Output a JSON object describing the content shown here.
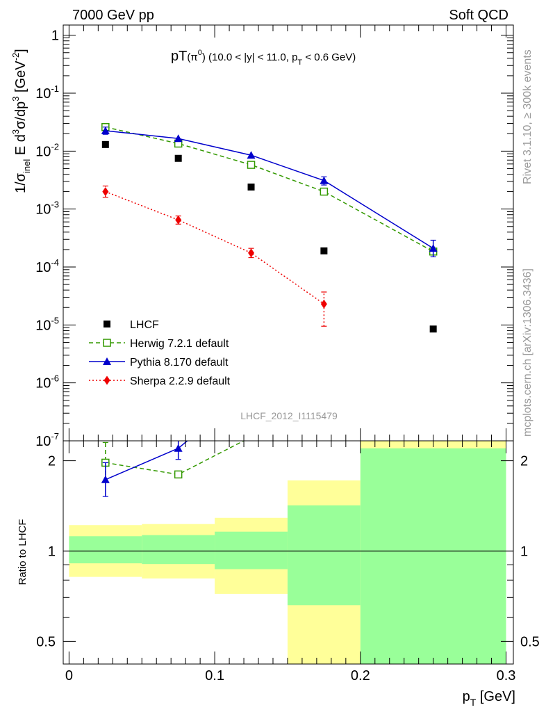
{
  "header": {
    "left": "7000 GeV pp",
    "right": "Soft QCD"
  },
  "side_text": {
    "rivet": "Rivet 3.1.10, ≥ 300k events",
    "mcplots": "mcplots.cern.ch [arXiv:1306.3436]"
  },
  "chart_data": [
    {
      "type": "line",
      "title": "pT(π⁰) (10.0 < |y| < 11.0, p_T < 0.6 GeV)",
      "title_parts": {
        "main": "pT",
        "particle": "(π",
        "particle_sup": "0",
        "cut": ") (10.0 < |y| < 11.0, p",
        "cut_sub": "T",
        "cut_end": " < 0.6 GeV)"
      },
      "ylabel": "1/σ_inel E d³σ/dp³ [GeV⁻²]",
      "ylabel_parts": {
        "a": "1/σ",
        "a_sub": "inel",
        "b": " E d",
        "b_sup": "3",
        "c": "σ/dp",
        "c_sup": "3",
        "d": " [GeV",
        "d_sup": "-2",
        "e": "]"
      },
      "analysis_label": "LHCF_2012_I1115479",
      "yscale": "log",
      "ylim": [
        1e-07,
        1.5
      ],
      "xlim": [
        -0.004,
        0.305
      ],
      "yticks": [
        {
          "v": 1e-07,
          "base": "10",
          "exp": "-7"
        },
        {
          "v": 1e-06,
          "base": "10",
          "exp": "-6"
        },
        {
          "v": 1e-05,
          "base": "10",
          "exp": "-5"
        },
        {
          "v": 0.0001,
          "base": "10",
          "exp": "-4"
        },
        {
          "v": 0.001,
          "base": "10",
          "exp": "-3"
        },
        {
          "v": 0.01,
          "base": "10",
          "exp": "-2"
        },
        {
          "v": 0.1,
          "base": "10",
          "exp": "-1"
        },
        {
          "v": 1,
          "base": "1",
          "exp": ""
        }
      ],
      "legend_position": "bottom-left",
      "series": [
        {
          "name": "LHCF",
          "color": "#000000",
          "marker": "square-filled",
          "line": "none",
          "points": [
            {
              "x": 0.025,
              "y": 0.013
            },
            {
              "x": 0.075,
              "y": 0.0075
            },
            {
              "x": 0.125,
              "y": 0.0024
            },
            {
              "x": 0.175,
              "y": 0.00019
            },
            {
              "x": 0.25,
              "y": 8.5e-06
            }
          ]
        },
        {
          "name": "Herwig 7.2.1 default",
          "color": "#339900",
          "marker": "square-open",
          "line": "dashed",
          "points": [
            {
              "x": 0.025,
              "y": 0.026
            },
            {
              "x": 0.075,
              "y": 0.0135
            },
            {
              "x": 0.125,
              "y": 0.0058
            },
            {
              "x": 0.175,
              "y": 0.002
            },
            {
              "x": 0.25,
              "y": 0.000185
            }
          ]
        },
        {
          "name": "Pythia 8.170 default",
          "color": "#0000cc",
          "marker": "triangle-filled",
          "line": "solid",
          "points": [
            {
              "x": 0.025,
              "y": 0.0225,
              "lo": 0.0195,
              "hi": 0.026
            },
            {
              "x": 0.075,
              "y": 0.0165
            },
            {
              "x": 0.125,
              "y": 0.0085
            },
            {
              "x": 0.175,
              "y": 0.0031,
              "lo": 0.0026,
              "hi": 0.0036
            },
            {
              "x": 0.25,
              "y": 0.00021,
              "lo": 0.00015,
              "hi": 0.00029
            }
          ]
        },
        {
          "name": "Sherpa 2.2.9 default",
          "color": "#ee0000",
          "marker": "diamond-filled",
          "line": "dotted",
          "points": [
            {
              "x": 0.025,
              "y": 0.002,
              "lo": 0.0016,
              "hi": 0.0025
            },
            {
              "x": 0.075,
              "y": 0.00065,
              "lo": 0.00055,
              "hi": 0.00076
            },
            {
              "x": 0.125,
              "y": 0.000175,
              "lo": 0.000145,
              "hi": 0.00021
            },
            {
              "x": 0.175,
              "y": 2.3e-05,
              "lo": 9.5e-06,
              "hi": 3.7e-05
            }
          ]
        }
      ]
    },
    {
      "type": "line",
      "ylabel": "Ratio to LHCF",
      "xlabel": "p_T [GeV]",
      "xlabel_parts": {
        "a": "p",
        "a_sub": "T",
        "b": " [GeV]"
      },
      "yscale": "log",
      "ylim": [
        0.42,
        2.33
      ],
      "xlim": [
        -0.004,
        0.305
      ],
      "yticks": [
        {
          "v": 0.5,
          "label": "0.5"
        },
        {
          "v": 1,
          "label": "1"
        },
        {
          "v": 2,
          "label": "2"
        }
      ],
      "xticks": [
        {
          "v": 0,
          "label": "0"
        },
        {
          "v": 0.1,
          "label": "0.1"
        },
        {
          "v": 0.2,
          "label": "0.2"
        },
        {
          "v": 0.3,
          "label": "0.3"
        }
      ],
      "reference_line": 1,
      "bands": [
        {
          "x0": 0.0,
          "x1": 0.05,
          "inner": [
            0.91,
            1.12
          ],
          "outer": [
            0.82,
            1.22
          ]
        },
        {
          "x0": 0.05,
          "x1": 0.1,
          "inner": [
            0.905,
            1.13
          ],
          "outer": [
            0.81,
            1.23
          ]
        },
        {
          "x0": 0.1,
          "x1": 0.15,
          "inner": [
            0.87,
            1.16
          ],
          "outer": [
            0.72,
            1.29
          ]
        },
        {
          "x0": 0.15,
          "x1": 0.2,
          "inner": [
            0.66,
            1.42
          ],
          "outer": [
            0.42,
            1.72
          ]
        },
        {
          "x0": 0.2,
          "x1": 0.3,
          "inner": [
            0.42,
            2.2
          ],
          "outer": [
            0.42,
            2.33
          ]
        }
      ],
      "band_colors": {
        "inner": "#99ff99",
        "outer": "#ffff99"
      },
      "series": [
        {
          "name": "Herwig 7.2.1 default",
          "color": "#339900",
          "marker": "square-open",
          "line": "dashed",
          "points": [
            {
              "x": 0.025,
              "y": 1.97,
              "lo": 1.7,
              "hi": 2.3
            },
            {
              "x": 0.075,
              "y": 1.8
            },
            {
              "x": 0.125,
              "y": 2.4
            }
          ]
        },
        {
          "name": "Pythia 8.170 default",
          "color": "#0000cc",
          "marker": "triangle-filled",
          "line": "solid",
          "points": [
            {
              "x": 0.025,
              "y": 1.73,
              "lo": 1.52,
              "hi": 1.97
            },
            {
              "x": 0.075,
              "y": 2.2,
              "lo": 2.02,
              "hi": 2.42
            },
            {
              "x": 0.125,
              "y": 3.5
            }
          ]
        }
      ]
    }
  ]
}
